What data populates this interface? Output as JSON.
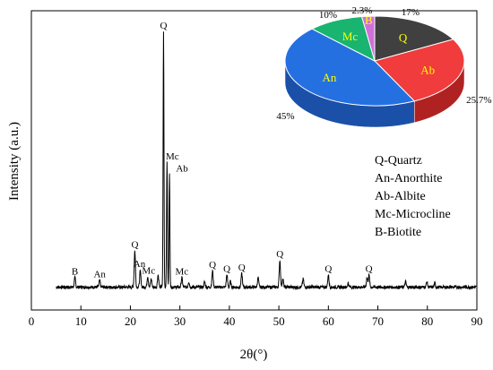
{
  "chart_data": [
    {
      "type": "line",
      "xlabel": "2θ(°)",
      "ylabel": "Intensity (a.u.)",
      "xlim": [
        0,
        90
      ],
      "xticks": [
        0,
        10,
        20,
        30,
        40,
        50,
        60,
        70,
        80,
        90
      ],
      "grid": false,
      "peaks": [
        {
          "x": 8.8,
          "y": 0.035,
          "label": "B"
        },
        {
          "x": 13.8,
          "y": 0.025,
          "label": "An"
        },
        {
          "x": 20.9,
          "y": 0.135,
          "label": "Q"
        },
        {
          "x": 22.0,
          "y": 0.06,
          "label": "An"
        },
        {
          "x": 23.5,
          "y": 0.04,
          "label": "Mc"
        },
        {
          "x": 26.7,
          "y": 0.95,
          "label": "Q"
        },
        {
          "x": 27.4,
          "y": 0.47,
          "label": "Mc"
        },
        {
          "x": 27.9,
          "y": 0.42,
          "label": "Ab"
        },
        {
          "x": 30.4,
          "y": 0.035,
          "label": "Mc"
        },
        {
          "x": 36.6,
          "y": 0.06,
          "label": "Q"
        },
        {
          "x": 39.5,
          "y": 0.045,
          "label": "Q"
        },
        {
          "x": 42.5,
          "y": 0.05,
          "label": "Q"
        },
        {
          "x": 50.2,
          "y": 0.1,
          "label": "Q"
        },
        {
          "x": 60.0,
          "y": 0.045,
          "label": "Q"
        },
        {
          "x": 68.2,
          "y": 0.045,
          "label": "Q"
        }
      ],
      "legend": [
        "Q-Quartz",
        "An-Anorthite",
        "Ab-Albite",
        "Mc-Microcline",
        "B-Biotite"
      ]
    },
    {
      "type": "pie",
      "categories": [
        "Q",
        "Ab",
        "An",
        "Mc",
        "B"
      ],
      "values": [
        17,
        25.7,
        45,
        10,
        2.3
      ],
      "value_labels": [
        "17%",
        "25.7%",
        "45%",
        "10%",
        "2.3%"
      ],
      "colors": [
        "#404040",
        "#f03c3c",
        "#2570e0",
        "#18b470",
        "#d070d8"
      ],
      "side_colors": [
        "#262626",
        "#b02222",
        "#1a50a8",
        "#0f8050",
        "#9a48a0"
      ],
      "label_colors": [
        "#ffff00",
        "#ffff00",
        "#ffff00",
        "#ffff00",
        "#ffff00"
      ]
    }
  ]
}
